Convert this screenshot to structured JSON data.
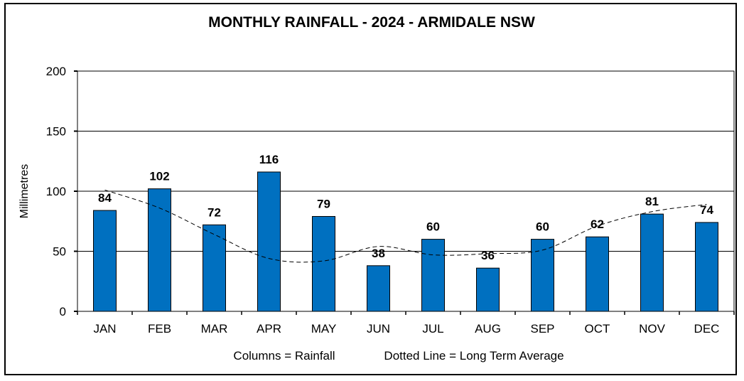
{
  "chart_data": {
    "type": "bar",
    "title": "MONTHLY RAINFALL - 2024 - ARMIDALE NSW",
    "ylabel": "Millimetres",
    "xlabel": "",
    "ylim": [
      0,
      200
    ],
    "yticks": [
      0,
      50,
      100,
      150,
      200
    ],
    "grid": true,
    "categories": [
      "JAN",
      "FEB",
      "MAR",
      "APR",
      "MAY",
      "JUN",
      "JUL",
      "AUG",
      "SEP",
      "OCT",
      "NOV",
      "DEC"
    ],
    "series": [
      {
        "values": [
          84,
          102,
          72,
          116,
          79,
          38,
          60,
          36,
          60,
          62,
          81,
          74
        ],
        "color": "#0070C0",
        "data_labels": [
          "84",
          "102",
          "72",
          "116",
          "79",
          "38",
          "60",
          "36",
          "60",
          "62",
          "81",
          "74"
        ]
      },
      {
        "type": "line",
        "style": "dashed",
        "values": [
          101,
          86,
          64,
          44,
          42,
          54,
          47,
          48,
          51,
          71,
          83,
          89
        ],
        "color": "#000000"
      }
    ],
    "notes": [
      "Columns = Rainfall",
      "Dotted Line = Long Term Average"
    ]
  }
}
